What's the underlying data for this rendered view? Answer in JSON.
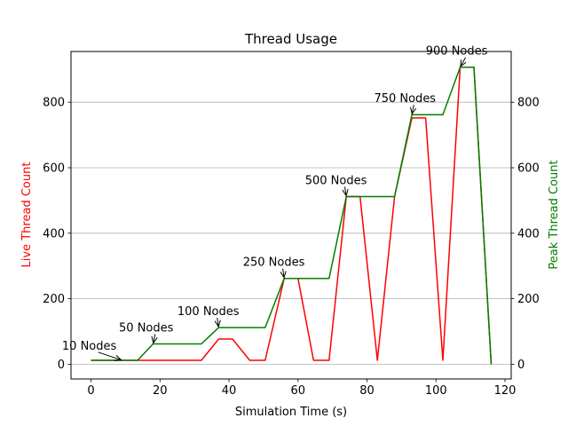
{
  "chart_data": {
    "type": "line",
    "title": "Thread Usage",
    "xlabel": "Simulation Time (s)",
    "ylabel_left": "Live Thread Count",
    "ylabel_right": "Peak Thread Count",
    "xlim": [
      -5.8,
      121.8
    ],
    "ylim": [
      -45,
      955
    ],
    "x_ticks": [
      0,
      20,
      40,
      60,
      80,
      100,
      120
    ],
    "y_ticks": [
      0,
      200,
      400,
      600,
      800
    ],
    "grid": "horizontal",
    "colors": {
      "live": "#ff0000",
      "peak": "#008000",
      "grid": "#b0b0b0",
      "left_label": "#ff0000",
      "right_label": "#008000"
    },
    "series": [
      {
        "name": "Live Thread Count",
        "axis": "left",
        "color": "#ff0000",
        "x": [
          0,
          13.5,
          18,
          32,
          37,
          41,
          46,
          50.5,
          56,
          60,
          64.5,
          69,
          74,
          78,
          83,
          88,
          93,
          97,
          102,
          107,
          111,
          116
        ],
        "y": [
          12,
          12,
          12,
          12,
          77,
          77,
          12,
          12,
          262,
          262,
          12,
          12,
          512,
          512,
          12,
          512,
          752,
          752,
          12,
          907,
          907,
          0
        ]
      },
      {
        "name": "Peak Thread Count",
        "axis": "right",
        "color": "#008000",
        "x": [
          0,
          13.5,
          18,
          32,
          37,
          41,
          46,
          50.5,
          56,
          60,
          64.5,
          69,
          74,
          78,
          83,
          88,
          93,
          97,
          102,
          107,
          111,
          116
        ],
        "y": [
          12,
          12,
          62,
          62,
          112,
          112,
          112,
          112,
          262,
          262,
          262,
          262,
          512,
          512,
          512,
          512,
          762,
          762,
          762,
          907,
          907,
          0
        ]
      }
    ],
    "annotations": [
      {
        "text": "10 Nodes",
        "x": 9,
        "y": 12,
        "text_x": -0.5,
        "text_y": 45
      },
      {
        "text": "50 Nodes",
        "x": 18,
        "y": 62,
        "text_x": 16,
        "text_y": 100
      },
      {
        "text": "100 Nodes",
        "x": 37,
        "y": 112,
        "text_x": 34,
        "text_y": 150
      },
      {
        "text": "250 Nodes",
        "x": 56,
        "y": 262,
        "text_x": 53,
        "text_y": 300
      },
      {
        "text": "500 Nodes",
        "x": 74,
        "y": 512,
        "text_x": 71,
        "text_y": 550
      },
      {
        "text": "750 Nodes",
        "x": 93,
        "y": 762,
        "text_x": 91,
        "text_y": 800
      },
      {
        "text": "900 Nodes",
        "x": 107,
        "y": 907,
        "text_x": 106,
        "text_y": 945
      }
    ]
  }
}
